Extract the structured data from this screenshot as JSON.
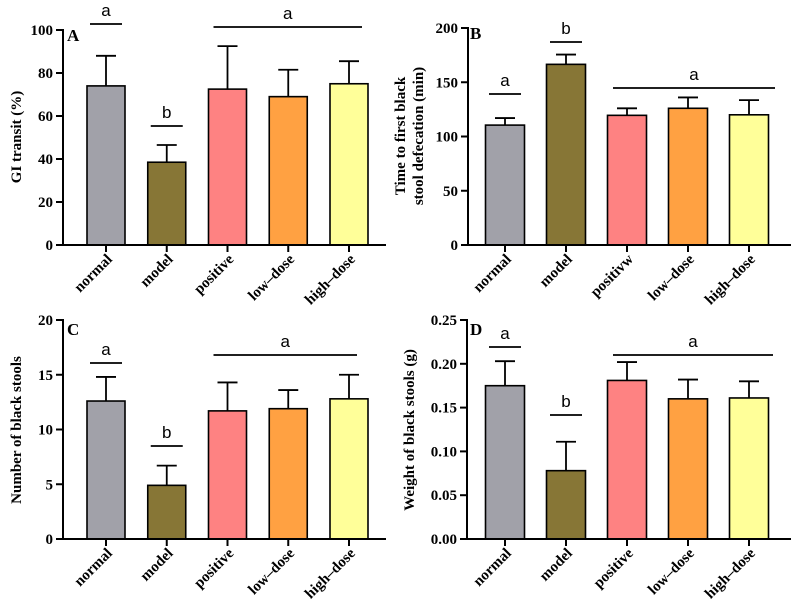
{
  "chart_data": [
    {
      "panel_label": "A",
      "type": "bar",
      "categories": [
        "normal",
        "model",
        "positive",
        "low–dose",
        "high–dose"
      ],
      "values": [
        74,
        38.5,
        72.5,
        69,
        75
      ],
      "errors": [
        14,
        8,
        20,
        12.5,
        10.5
      ],
      "ylabel": [
        "GI transit (%)"
      ],
      "ylim": [
        0,
        100
      ],
      "yticks": [
        0,
        20,
        40,
        60,
        80,
        100
      ],
      "ytick_labels": [
        "0",
        "20",
        "40",
        "60",
        "80",
        "100"
      ],
      "grid": false,
      "bar_colors": [
        "#a1a1a9",
        "#877636",
        "#fe8282",
        "#ffa142",
        "#ffff99"
      ],
      "significance": [
        {
          "label": "a",
          "categories": [
            0
          ]
        },
        {
          "label": "b",
          "categories": [
            1
          ]
        },
        {
          "label": "a",
          "categories": [
            2,
            3,
            4
          ]
        }
      ]
    },
    {
      "panel_label": "B",
      "type": "bar",
      "categories": [
        "normal",
        "model",
        "positivw",
        "low–dose",
        "high–dose"
      ],
      "values": [
        110.5,
        166.5,
        119.5,
        126,
        120
      ],
      "errors": [
        6.5,
        9,
        6.5,
        10,
        13.5
      ],
      "ylabel": [
        "Time to first black",
        "stool defecation (min)"
      ],
      "ylim": [
        0,
        200
      ],
      "yticks": [
        0,
        50,
        100,
        150,
        200
      ],
      "ytick_labels": [
        "0",
        "50",
        "100",
        "150",
        "200"
      ],
      "grid": false,
      "bar_colors": [
        "#a1a1a9",
        "#877636",
        "#fe8282",
        "#ffa142",
        "#ffff99"
      ],
      "significance": [
        {
          "label": "a",
          "categories": [
            0
          ]
        },
        {
          "label": "b",
          "categories": [
            1
          ]
        },
        {
          "label": "a",
          "categories": [
            2,
            3,
            4
          ]
        }
      ]
    },
    {
      "panel_label": "C",
      "type": "bar",
      "categories": [
        "normal",
        "model",
        "positive",
        "low–dose",
        "high–dose"
      ],
      "values": [
        12.6,
        4.9,
        11.7,
        11.9,
        12.8
      ],
      "errors": [
        2.2,
        1.8,
        2.6,
        1.7,
        2.2
      ],
      "ylabel": [
        "Number of black stools"
      ],
      "ylim": [
        0,
        20
      ],
      "yticks": [
        0,
        5,
        10,
        15,
        20
      ],
      "ytick_labels": [
        "0",
        "5",
        "10",
        "15",
        "20"
      ],
      "grid": false,
      "bar_colors": [
        "#a1a1a9",
        "#877636",
        "#fe8282",
        "#ffa142",
        "#ffff99"
      ],
      "significance": [
        {
          "label": "a",
          "categories": [
            0
          ]
        },
        {
          "label": "b",
          "categories": [
            1
          ]
        },
        {
          "label": "a",
          "categories": [
            2,
            3,
            4
          ]
        }
      ]
    },
    {
      "panel_label": "D",
      "type": "bar",
      "categories": [
        "normal",
        "model",
        "positive",
        "low–dose",
        "high–dose"
      ],
      "values": [
        0.175,
        0.078,
        0.181,
        0.16,
        0.161
      ],
      "errors": [
        0.028,
        0.033,
        0.021,
        0.022,
        0.019
      ],
      "ylabel": [
        "Weight of black stools (g)"
      ],
      "ylim": [
        0,
        0.25
      ],
      "yticks": [
        0,
        0.05,
        0.1,
        0.15,
        0.2,
        0.25
      ],
      "ytick_labels": [
        "0.00",
        "0.05",
        "0.10",
        "0.15",
        "0.20",
        "0.25"
      ],
      "grid": false,
      "bar_colors": [
        "#a1a1a9",
        "#877636",
        "#fe8282",
        "#ffa142",
        "#ffff99"
      ],
      "significance": [
        {
          "label": "a",
          "categories": [
            0
          ]
        },
        {
          "label": "b",
          "categories": [
            1
          ]
        },
        {
          "label": "a",
          "categories": [
            2,
            3,
            4
          ]
        }
      ]
    }
  ]
}
